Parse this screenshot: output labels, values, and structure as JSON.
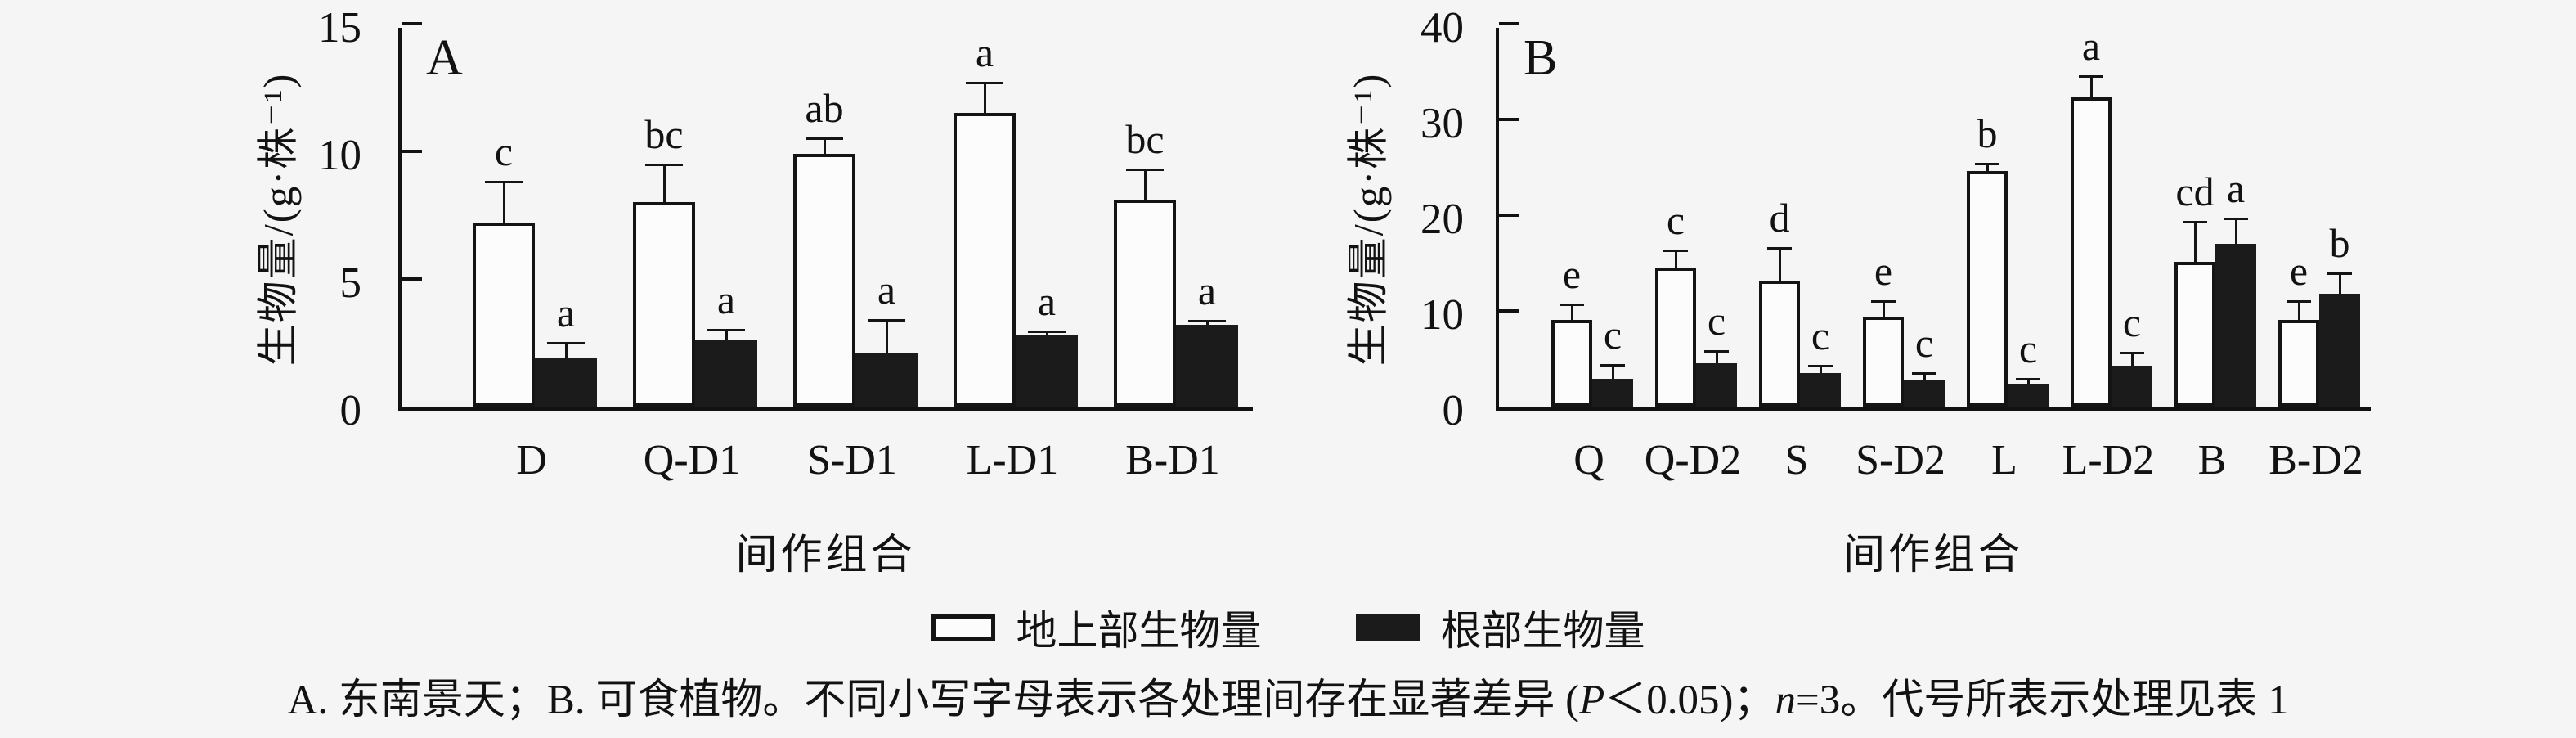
{
  "figure": {
    "legend": [
      {
        "swatch": "white",
        "label": "地上部生物量"
      },
      {
        "swatch": "black",
        "label": "根部生物量"
      }
    ],
    "caption_segments": [
      {
        "text": "A. 东南景天；B. 可食植物。不同小写字母表示各处理间存在显著差异 (",
        "italic": false
      },
      {
        "text": "P",
        "italic": true
      },
      {
        "text": "＜0.05)；",
        "italic": false
      },
      {
        "text": "n",
        "italic": true
      },
      {
        "text": "=3。代号所表示处理见表 1",
        "italic": false
      }
    ],
    "colors": {
      "background": "#f5f5f5",
      "ink": "#121212",
      "bar_white_fill": "#fcfcfc",
      "bar_black_fill": "#1b1b1b"
    }
  },
  "chart_data": [
    {
      "type": "bar",
      "panel": "A",
      "ylabel": "生物量/(g·株⁻¹)",
      "xlabel": "间作组合",
      "ylim": [
        0,
        15
      ],
      "yticks": [
        0,
        5,
        10,
        15
      ],
      "grid": false,
      "legend_position": "below",
      "categories": [
        "D",
        "Q-D1",
        "S-D1",
        "L-D1",
        "B-D1"
      ],
      "series": [
        {
          "name": "地上部生物量",
          "fill": "white",
          "values": [
            7.2,
            8.0,
            9.9,
            11.5,
            8.1
          ],
          "errors": [
            1.6,
            1.5,
            0.6,
            1.2,
            1.2
          ],
          "letters": [
            "c",
            "bc",
            "ab",
            "a",
            "bc"
          ]
        },
        {
          "name": "根部生物量",
          "fill": "black",
          "values": [
            1.9,
            2.6,
            2.1,
            2.8,
            3.2
          ],
          "errors": [
            0.6,
            0.4,
            1.3,
            0.15,
            0.15
          ],
          "letters": [
            "a",
            "a",
            "a",
            "a",
            "a"
          ]
        }
      ]
    },
    {
      "type": "bar",
      "panel": "B",
      "ylabel": "生物量/(g·株⁻¹)",
      "xlabel": "间作组合",
      "ylim": [
        0,
        40
      ],
      "yticks": [
        0,
        10,
        20,
        30,
        40
      ],
      "grid": false,
      "legend_position": "below",
      "categories": [
        "Q",
        "Q-D2",
        "S",
        "S-D2",
        "L",
        "L-D2",
        "B",
        "B-D2"
      ],
      "series": [
        {
          "name": "地上部生物量",
          "fill": "white",
          "values": [
            9.1,
            14.5,
            13.2,
            9.4,
            24.6,
            32.3,
            15.1,
            9.1
          ],
          "errors": [
            1.6,
            1.8,
            3.4,
            1.6,
            0.8,
            2.2,
            4.2,
            1.9
          ],
          "letters": [
            "e",
            "c",
            "d",
            "e",
            "b",
            "a",
            "cd",
            "e"
          ]
        },
        {
          "name": "根部生物量",
          "fill": "black",
          "values": [
            2.9,
            4.5,
            3.5,
            2.8,
            2.4,
            4.3,
            17.0,
            11.8
          ],
          "errors": [
            1.5,
            1.3,
            0.8,
            0.7,
            0.5,
            1.3,
            2.7,
            2.1
          ],
          "letters": [
            "c",
            "c",
            "c",
            "c",
            "c",
            "c",
            "a",
            "b"
          ]
        }
      ]
    }
  ]
}
